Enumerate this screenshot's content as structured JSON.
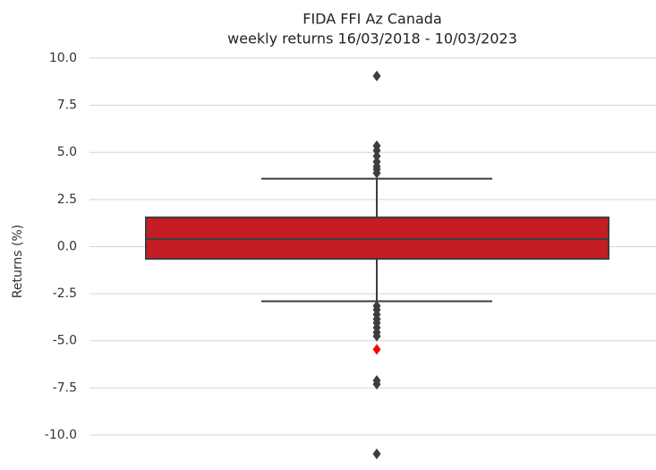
{
  "chart_data": {
    "type": "box",
    "title": "FIDA FFI Az Canada",
    "subtitle": "weekly returns 16/03/2018 - 10/03/2023",
    "y_label": "Returns (%)",
    "ylim": [
      -11.8,
      10.3
    ],
    "yticks": [
      {
        "value": -10,
        "label": "-10.0"
      },
      {
        "value": -7.5,
        "label": "-7.5"
      },
      {
        "value": -5,
        "label": "-5.0"
      },
      {
        "value": -2.5,
        "label": "-2.5"
      },
      {
        "value": 0,
        "label": "0.0"
      },
      {
        "value": 2.5,
        "label": "2.5"
      },
      {
        "value": 5,
        "label": "5.0"
      },
      {
        "value": 7.5,
        "label": "7.5"
      },
      {
        "value": 10,
        "label": "10.0"
      }
    ],
    "grid": true,
    "box": {
      "color": "#c41e24",
      "edge_color": "#3d3d3d",
      "whislo": -2.9,
      "q1": -0.65,
      "median": 0.4,
      "q3": 1.55,
      "whishi": 3.6,
      "fliers": [
        9.05,
        5.35,
        5.1,
        4.8,
        4.5,
        4.25,
        4.1,
        3.9,
        -3.15,
        -3.35,
        -3.6,
        -3.85,
        -4.05,
        -4.3,
        -4.55,
        -4.75,
        -7.1,
        -7.3,
        -11.0
      ]
    },
    "highlight": {
      "value": -5.45,
      "color": "#ff0000"
    }
  }
}
